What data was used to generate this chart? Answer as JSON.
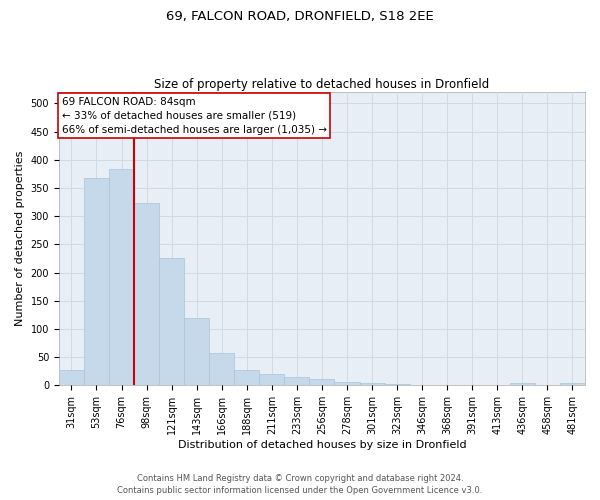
{
  "title1": "69, FALCON ROAD, DRONFIELD, S18 2EE",
  "title2": "Size of property relative to detached houses in Dronfield",
  "xlabel": "Distribution of detached houses by size in Dronfield",
  "ylabel": "Number of detached properties",
  "bar_labels": [
    "31sqm",
    "53sqm",
    "76sqm",
    "98sqm",
    "121sqm",
    "143sqm",
    "166sqm",
    "188sqm",
    "211sqm",
    "233sqm",
    "256sqm",
    "278sqm",
    "301sqm",
    "323sqm",
    "346sqm",
    "368sqm",
    "391sqm",
    "413sqm",
    "436sqm",
    "458sqm",
    "481sqm"
  ],
  "bar_values": [
    27,
    368,
    383,
    323,
    225,
    120,
    57,
    27,
    20,
    15,
    12,
    6,
    4,
    3,
    1,
    1,
    1,
    1,
    5,
    1,
    4
  ],
  "bar_color": "#c6d9ea",
  "bar_edgecolor": "#a8c4d8",
  "grid_color": "#d0dae4",
  "background_color": "#e8eef5",
  "vline_color": "#cc0000",
  "annotation_line1": "69 FALCON ROAD: 84sqm",
  "annotation_line2": "← 33% of detached houses are smaller (519)",
  "annotation_line3": "66% of semi-detached houses are larger (1,035) →",
  "annotation_box_color": "#ffffff",
  "annotation_box_edgecolor": "#cc0000",
  "ylim": [
    0,
    520
  ],
  "yticks": [
    0,
    50,
    100,
    150,
    200,
    250,
    300,
    350,
    400,
    450,
    500
  ],
  "footer1": "Contains HM Land Registry data © Crown copyright and database right 2024.",
  "footer2": "Contains public sector information licensed under the Open Government Licence v3.0.",
  "title1_fontsize": 9.5,
  "title2_fontsize": 8.5,
  "ylabel_fontsize": 8,
  "xlabel_fontsize": 8,
  "tick_fontsize": 7,
  "footer_fontsize": 6,
  "annot_fontsize": 7.5
}
